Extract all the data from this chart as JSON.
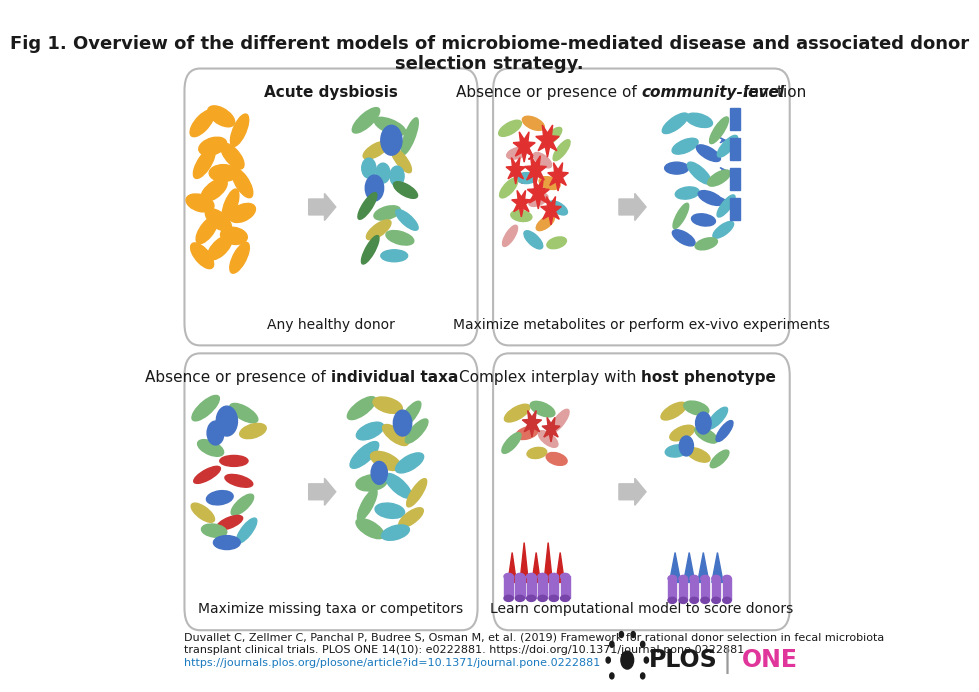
{
  "title_line1": "Fig 1. Overview of the different models of microbiome-mediated disease and associated donor",
  "title_line2": "selection strategy.",
  "panel_subtitles": [
    "Any healthy donor",
    "Maximize metabolites or perform ex-vivo experiments",
    "Maximize missing taxa or competitors",
    "Learn computational model to score donors"
  ],
  "citation_line1": "Duvallet C, Zellmer C, Panchal P, Budree S, Osman M, et al. (2019) Framework for rational donor selection in fecal microbiota",
  "citation_line2": "transplant clinical trials. PLOS ONE 14(10): e0222881. https://doi.org/10.1371/journal.pone.0222881",
  "citation_url": "https://journals.plos.org/plosone/article?id=10.1371/journal.pone.0222881",
  "bg_color": "#ffffff",
  "panel_border": "#c0c0c0",
  "arrow_color": "#bbbbbb",
  "title_fontsize": 13,
  "panel_title_fontsize": 11,
  "panel_subtitle_fontsize": 10,
  "citation_fontsize": 8,
  "url_color": "#1a7abf"
}
